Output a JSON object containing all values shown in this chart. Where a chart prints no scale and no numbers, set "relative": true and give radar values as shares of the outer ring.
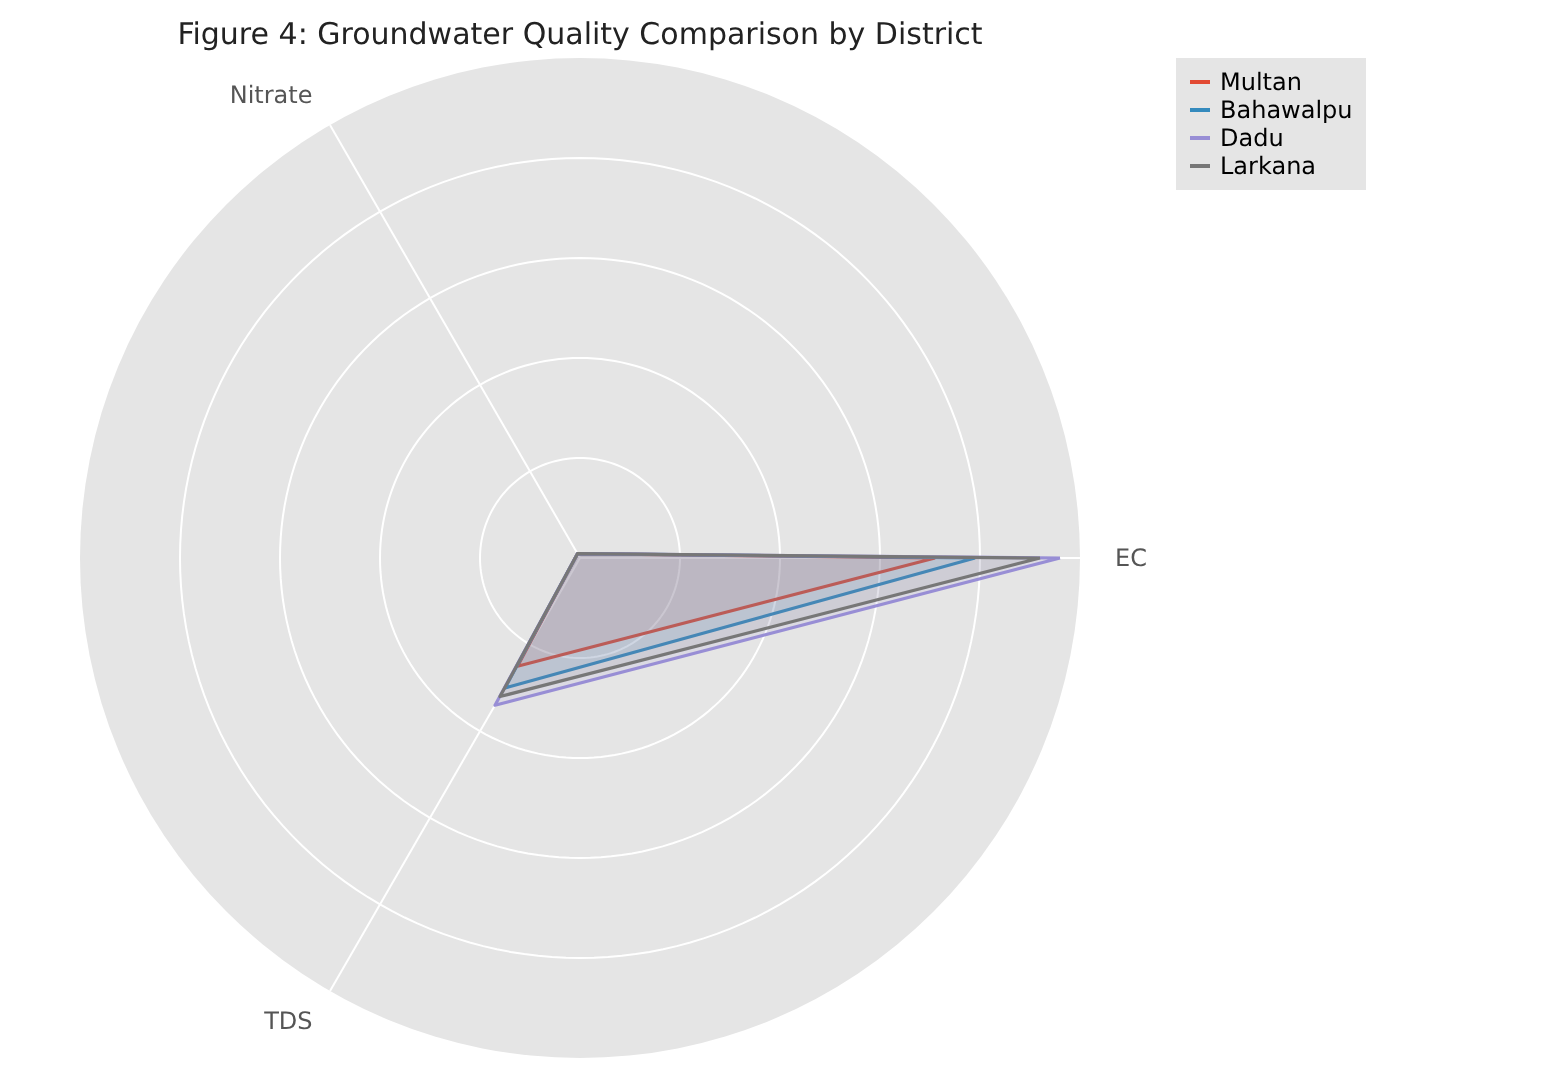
{
  "chart_data": {
    "type": "radar",
    "title": "Figure 4: Groundwater Quality Comparison by District",
    "relative": true,
    "grid": true,
    "legend": "top right",
    "categories": [
      "EC",
      "TDS",
      "Nitrate"
    ],
    "series": [
      {
        "name": "Multan",
        "color": "#e24a33",
        "values": [
          0.71,
          0.25,
          0.01
        ]
      },
      {
        "name": "Bahawalpu",
        "color": "#348abd",
        "values": [
          0.79,
          0.3,
          0.01
        ]
      },
      {
        "name": "Dadu",
        "color": "#988ed5",
        "values": [
          0.96,
          0.34,
          0.01
        ]
      },
      {
        "name": "Larkana",
        "color": "#777777",
        "values": [
          0.92,
          0.32,
          0.01
        ]
      }
    ]
  }
}
